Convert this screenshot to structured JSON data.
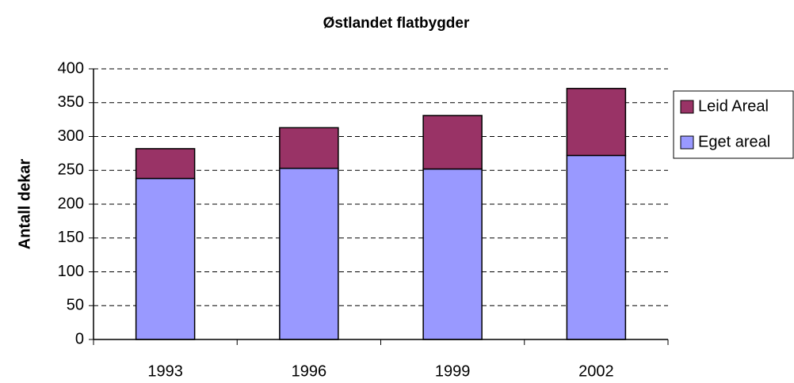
{
  "chart_data": {
    "type": "stacked_bar",
    "title": "Østlandet flatbygder",
    "y_label": "Antall dekar",
    "categories": [
      "1993",
      "1996",
      "1999",
      "2002"
    ],
    "series": [
      {
        "name": "Eget areal",
        "color": "#9999ff",
        "values": [
          238,
          253,
          252,
          272
        ]
      },
      {
        "name": "Leid Areal",
        "color": "#993366",
        "values": [
          44,
          60,
          79,
          99
        ]
      }
    ],
    "ylim": [
      0,
      400
    ],
    "yticks": [
      0,
      50,
      100,
      150,
      200,
      250,
      300,
      350,
      400
    ],
    "grid": true,
    "legend": "right"
  }
}
